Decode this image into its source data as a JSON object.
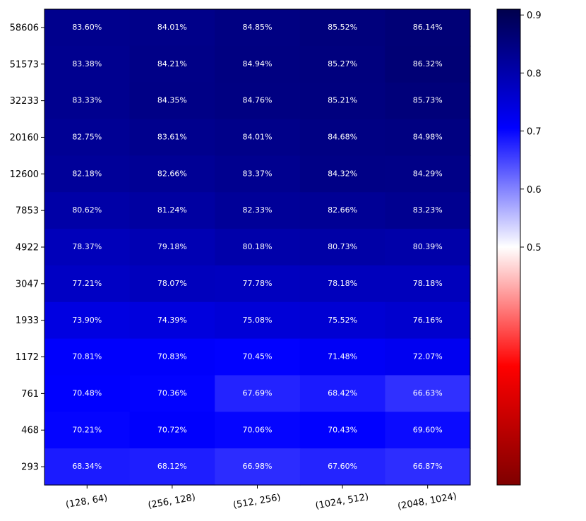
{
  "chart_data": {
    "type": "heatmap",
    "title": "",
    "xlabel": "",
    "ylabel": "",
    "x_categories": [
      "(128, 64)",
      "(256, 128)",
      "(512, 256)",
      "(1024, 512)",
      "(2048, 1024)"
    ],
    "y_categories": [
      "58606",
      "51573",
      "32233",
      "20160",
      "12600",
      "7853",
      "4922",
      "3047",
      "1933",
      "1172",
      "761",
      "468",
      "293"
    ],
    "values": [
      [
        0.836,
        0.8401,
        0.8485,
        0.8552,
        0.8614
      ],
      [
        0.8338,
        0.8421,
        0.8494,
        0.8527,
        0.8632
      ],
      [
        0.8333,
        0.8435,
        0.8476,
        0.8521,
        0.8573
      ],
      [
        0.8275,
        0.8361,
        0.8401,
        0.8468,
        0.8498
      ],
      [
        0.8218,
        0.8266,
        0.8337,
        0.8432,
        0.8429
      ],
      [
        0.8062,
        0.8124,
        0.8233,
        0.8266,
        0.8323
      ],
      [
        0.7837,
        0.7918,
        0.8018,
        0.8073,
        0.8039
      ],
      [
        0.7721,
        0.7807,
        0.7778,
        0.7818,
        0.7818
      ],
      [
        0.739,
        0.7439,
        0.7508,
        0.7552,
        0.7616
      ],
      [
        0.7081,
        0.7083,
        0.7045,
        0.7148,
        0.7207
      ],
      [
        0.7048,
        0.7036,
        0.6769,
        0.6842,
        0.6663
      ],
      [
        0.7021,
        0.7072,
        0.7006,
        0.7043,
        0.696
      ],
      [
        0.6834,
        0.6812,
        0.6698,
        0.676,
        0.6687
      ]
    ],
    "cell_labels": [
      [
        "83.60%",
        "84.01%",
        "84.85%",
        "85.52%",
        "86.14%"
      ],
      [
        "83.38%",
        "84.21%",
        "84.94%",
        "85.27%",
        "86.32%"
      ],
      [
        "83.33%",
        "84.35%",
        "84.76%",
        "85.21%",
        "85.73%"
      ],
      [
        "82.75%",
        "83.61%",
        "84.01%",
        "84.68%",
        "84.98%"
      ],
      [
        "82.18%",
        "82.66%",
        "83.37%",
        "84.32%",
        "84.29%"
      ],
      [
        "80.62%",
        "81.24%",
        "82.33%",
        "82.66%",
        "83.23%"
      ],
      [
        "78.37%",
        "79.18%",
        "80.18%",
        "80.73%",
        "80.39%"
      ],
      [
        "77.21%",
        "78.07%",
        "77.78%",
        "78.18%",
        "78.18%"
      ],
      [
        "73.90%",
        "74.39%",
        "75.08%",
        "75.52%",
        "76.16%"
      ],
      [
        "70.81%",
        "70.83%",
        "70.45%",
        "71.48%",
        "72.07%"
      ],
      [
        "70.48%",
        "70.36%",
        "67.69%",
        "68.42%",
        "66.63%"
      ],
      [
        "70.21%",
        "70.72%",
        "70.06%",
        "70.43%",
        "69.60%"
      ],
      [
        "68.34%",
        "68.12%",
        "66.98%",
        "67.60%",
        "66.87%"
      ]
    ],
    "colormap": "seismic_r",
    "colorbar": {
      "range": [
        0.09,
        0.91
      ],
      "ticks": [
        0.5,
        0.6,
        0.7,
        0.8,
        0.9
      ],
      "tick_labels": [
        "0.5",
        "0.6",
        "0.7",
        "0.8",
        "0.9"
      ]
    },
    "grid": false,
    "legend": "none",
    "x_tick_rotation_deg": 10
  }
}
